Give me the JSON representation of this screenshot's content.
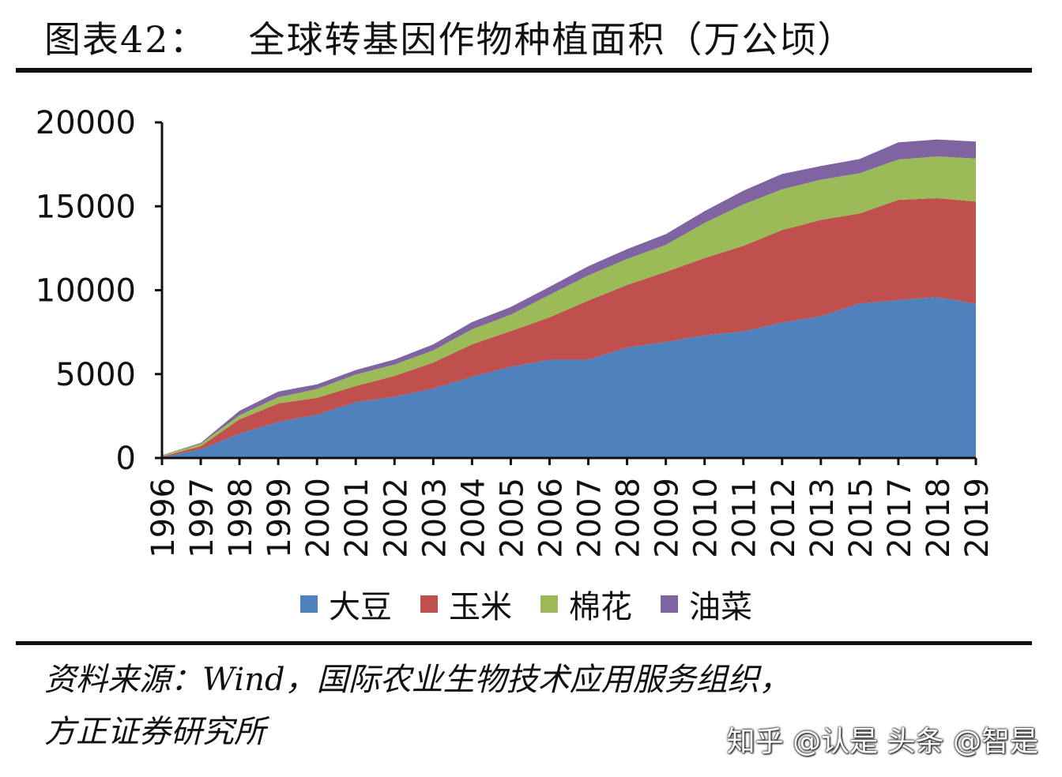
{
  "header": {
    "label": "图表42：",
    "title": "全球转基因作物种植面积（万公顷）"
  },
  "chart_data": {
    "type": "area",
    "stacked": true,
    "x": [
      "1996",
      "1997",
      "1998",
      "1999",
      "2000",
      "2001",
      "2002",
      "2003",
      "2004",
      "2005",
      "2006",
      "2007",
      "2008",
      "2009",
      "2010",
      "2011",
      "2012",
      "2013",
      "2015",
      "2017",
      "2018",
      "2019"
    ],
    "series": [
      {
        "name": "大豆",
        "color": "#4F81BD",
        "values": [
          50,
          520,
          1450,
          2150,
          2580,
          3330,
          3650,
          4140,
          4840,
          5440,
          5860,
          5860,
          6580,
          6920,
          7310,
          7540,
          8070,
          8450,
          9210,
          9410,
          9590,
          9190
        ]
      },
      {
        "name": "玉米",
        "color": "#C0504D",
        "values": [
          30,
          180,
          850,
          1100,
          1000,
          960,
          1240,
          1550,
          1930,
          2120,
          2520,
          3520,
          3730,
          4170,
          4600,
          5100,
          5510,
          5740,
          5360,
          5970,
          5890,
          6090
        ]
      },
      {
        "name": "棉花",
        "color": "#9BBB59",
        "values": [
          80,
          150,
          250,
          370,
          530,
          680,
          680,
          720,
          900,
          980,
          1340,
          1500,
          1550,
          1610,
          2100,
          2470,
          2430,
          2390,
          2400,
          2410,
          2490,
          2570
        ]
      },
      {
        "name": "油菜",
        "color": "#8064A2",
        "values": [
          10,
          50,
          260,
          340,
          280,
          270,
          300,
          360,
          430,
          460,
          480,
          550,
          590,
          640,
          700,
          820,
          920,
          820,
          850,
          1020,
          1010,
          1010
        ]
      }
    ],
    "ylim": [
      0,
      20000
    ],
    "yticks": [
      "0",
      "5000",
      "10000",
      "15000",
      "20000"
    ],
    "legend_position": "bottom",
    "grid": false
  },
  "source": {
    "line1": "资料来源：Wind，国际农业生物技术应用服务组织，",
    "line2": "方正证券研究所"
  },
  "watermark": "知乎 @认是  头条 @智是"
}
